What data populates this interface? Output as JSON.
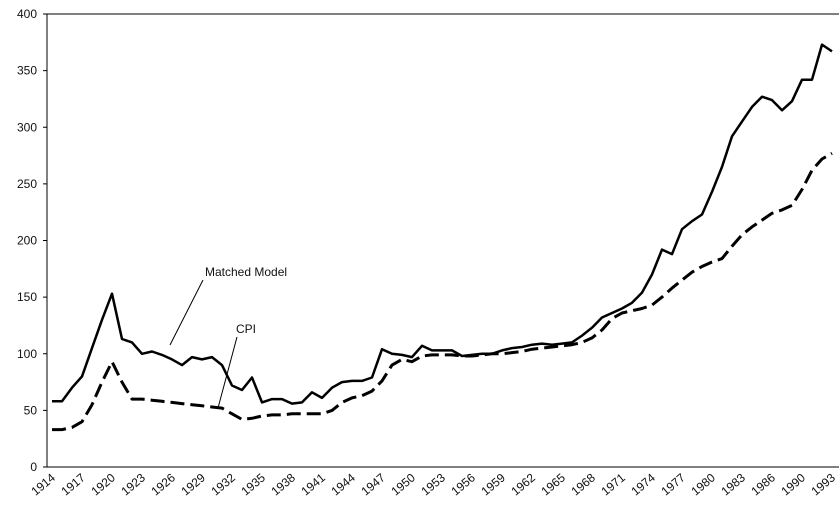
{
  "chart_data": {
    "type": "line",
    "categories": [
      "1914",
      null,
      null,
      "1917",
      null,
      null,
      "1920",
      null,
      null,
      "1923",
      null,
      null,
      "1926",
      null,
      null,
      "1929",
      null,
      null,
      "1932",
      null,
      null,
      "1935",
      null,
      null,
      "1938",
      null,
      null,
      "1941",
      null,
      null,
      "1944",
      null,
      null,
      "1947",
      null,
      null,
      "1950",
      null,
      null,
      "1953",
      null,
      null,
      "1956",
      null,
      null,
      "1959",
      null,
      null,
      "1962",
      null,
      null,
      "1965",
      null,
      null,
      "1968",
      null,
      null,
      "1971",
      null,
      null,
      "1974",
      null,
      null,
      "1977",
      null,
      null,
      "1980",
      null,
      null,
      "1983",
      null,
      null,
      "1986",
      null,
      null,
      "1990",
      null,
      null,
      "1993"
    ],
    "series": [
      {
        "name": "Matched Model",
        "color": "#000000",
        "dash": false,
        "values": [
          58,
          58,
          70,
          80,
          105,
          130,
          153,
          113,
          110,
          100,
          102,
          99,
          95,
          90,
          97,
          95,
          97,
          90,
          72,
          68,
          79,
          57,
          60,
          60,
          56,
          57,
          66,
          61,
          70,
          75,
          76,
          76,
          79,
          104,
          100,
          99,
          97,
          107,
          103,
          103,
          103,
          98,
          99,
          100,
          100,
          103,
          105,
          106,
          108,
          109,
          108,
          109,
          110,
          116,
          123,
          132,
          136,
          140,
          145,
          154,
          170,
          192,
          188,
          210,
          217,
          223,
          243,
          265,
          292,
          305,
          318,
          327,
          324,
          315,
          323,
          342,
          342,
          373,
          367
        ]
      },
      {
        "name": "CPI",
        "color": "#000000",
        "dash": true,
        "values": [
          33,
          33,
          35,
          40,
          55,
          75,
          93,
          75,
          60,
          60,
          59,
          58,
          57,
          56,
          55,
          54,
          53,
          52,
          47,
          42,
          43,
          45,
          46,
          46,
          47,
          47,
          47,
          47,
          50,
          57,
          61,
          63,
          67,
          76,
          90,
          95,
          93,
          98,
          99,
          99,
          99,
          98,
          98,
          99,
          100,
          100,
          101,
          102,
          104,
          105,
          106,
          107,
          108,
          110,
          114,
          121,
          131,
          136,
          138,
          140,
          143,
          150,
          158,
          165,
          172,
          177,
          181,
          184,
          195,
          205,
          212,
          218,
          224,
          227,
          231,
          245,
          262,
          272,
          277
        ]
      }
    ],
    "ylim": [
      0,
      400
    ],
    "yticks": [
      0,
      50,
      100,
      150,
      200,
      250,
      300,
      350,
      400
    ],
    "grid": false
  }
}
